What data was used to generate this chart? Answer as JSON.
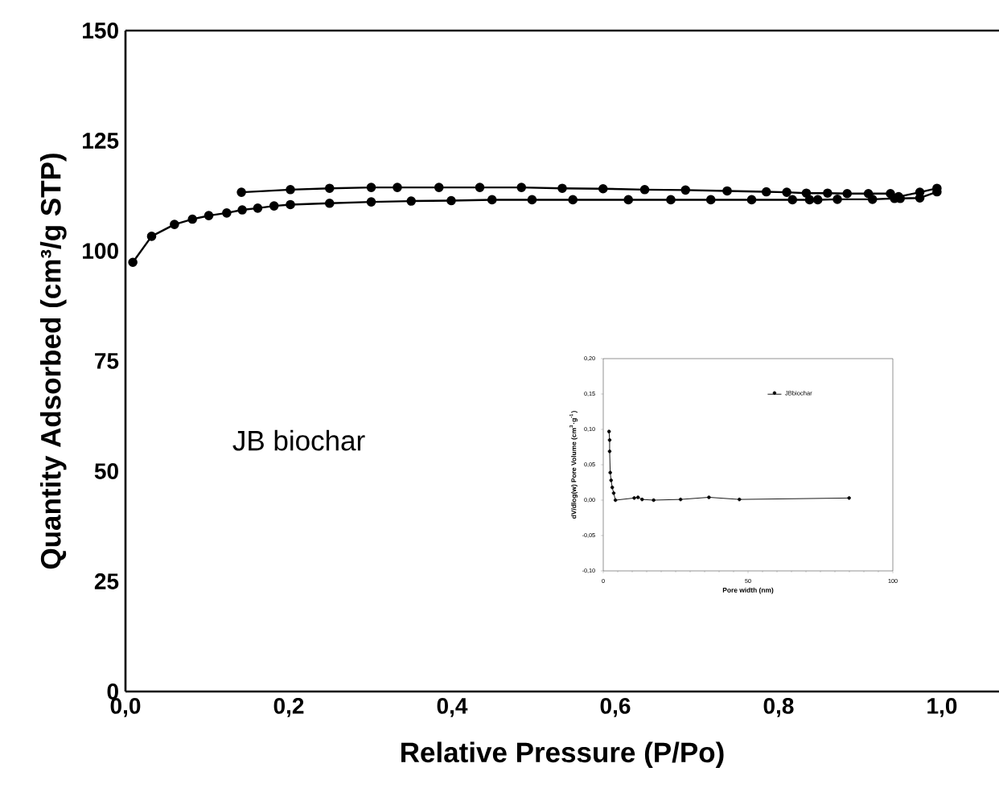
{
  "chart_data": [
    {
      "type": "line",
      "xlabel": "Relative Pressure (P/Po)",
      "ylabel": "Quantity Adsorbed (cm³/g STP)",
      "marker": "circle",
      "legend": false,
      "xlim": [
        0,
        1.07
      ],
      "ylim": [
        0,
        150
      ],
      "xticks": [
        {
          "value": 0,
          "label": "0,0"
        },
        {
          "value": 0.2,
          "label": "0,2"
        },
        {
          "value": 0.4,
          "label": "0,4"
        },
        {
          "value": 0.6,
          "label": "0,6"
        },
        {
          "value": 0.8,
          "label": "0,8"
        },
        {
          "value": 1.0,
          "label": "1,0"
        }
      ],
      "yticks": [
        0,
        25,
        50,
        75,
        100,
        125,
        150
      ],
      "annotations": [
        "JB biochar"
      ],
      "series": [
        {
          "color": "#000000",
          "x": [
            0.009,
            0.032,
            0.06,
            0.082,
            0.102,
            0.124,
            0.143,
            0.162,
            0.182,
            0.202,
            0.25,
            0.301,
            0.35,
            0.399,
            0.449,
            0.498,
            0.548,
            0.616,
            0.668,
            0.717,
            0.767,
            0.817,
            0.838,
            0.848,
            0.872,
            0.915,
            0.942,
            0.949,
            0.973,
            0.994
          ],
          "values": [
            97.4,
            103.3,
            106.0,
            107.2,
            108.0,
            108.6,
            109.3,
            109.7,
            110.2,
            110.5,
            110.8,
            111.1,
            111.3,
            111.4,
            111.6,
            111.6,
            111.6,
            111.6,
            111.6,
            111.6,
            111.6,
            111.6,
            111.6,
            111.6,
            111.7,
            111.7,
            111.9,
            111.9,
            112.0,
            113.4
          ]
        },
        {
          "color": "#000000",
          "x": [
            0.142,
            0.202,
            0.25,
            0.301,
            0.333,
            0.384,
            0.434,
            0.485,
            0.535,
            0.585,
            0.636,
            0.686,
            0.737,
            0.785,
            0.81,
            0.834,
            0.86,
            0.884,
            0.91,
            0.937,
            0.947,
            0.973,
            0.994
          ],
          "values": [
            113.3,
            113.9,
            114.2,
            114.4,
            114.4,
            114.4,
            114.4,
            114.4,
            114.2,
            114.1,
            113.9,
            113.8,
            113.6,
            113.4,
            113.3,
            113.1,
            113.1,
            113.0,
            113.0,
            113.0,
            112.3,
            113.3,
            114.2
          ]
        }
      ]
    },
    {
      "type": "line",
      "xlabel": "Pore width (nm)",
      "ylabel": "dV/dlog(w) Pore Volume (cm$^{3}$·g$^{-1}$)",
      "marker": "circle",
      "legend": "top right",
      "xlim": [
        0,
        100
      ],
      "ylim": [
        -0.1,
        0.2
      ],
      "xticks": [
        0,
        50,
        100
      ],
      "yticks": [
        {
          "value": -0.1,
          "label": "-0,10"
        },
        {
          "value": -0.05,
          "label": "-0,05"
        },
        {
          "value": 0.0,
          "label": "0,00"
        },
        {
          "value": 0.05,
          "label": "0,05"
        },
        {
          "value": 0.1,
          "label": "0,10"
        },
        {
          "value": 0.15,
          "label": "0,15"
        },
        {
          "value": 0.2,
          "label": "0,20"
        }
      ],
      "series": [
        {
          "name": "JBbiochar",
          "color": "#000000",
          "x": [
            2.0,
            2.2,
            2.2,
            2.4,
            2.7,
            3.1,
            3.6,
            4.2,
            10.7,
            12.0,
            13.4,
            17.4,
            26.7,
            36.5,
            47.0,
            84.9
          ],
          "values": [
            0.097,
            0.085,
            0.069,
            0.039,
            0.028,
            0.018,
            0.01,
            0.0,
            0.003,
            0.004,
            0.001,
            0.0,
            0.001,
            0.004,
            0.001,
            0.003
          ]
        }
      ]
    }
  ]
}
